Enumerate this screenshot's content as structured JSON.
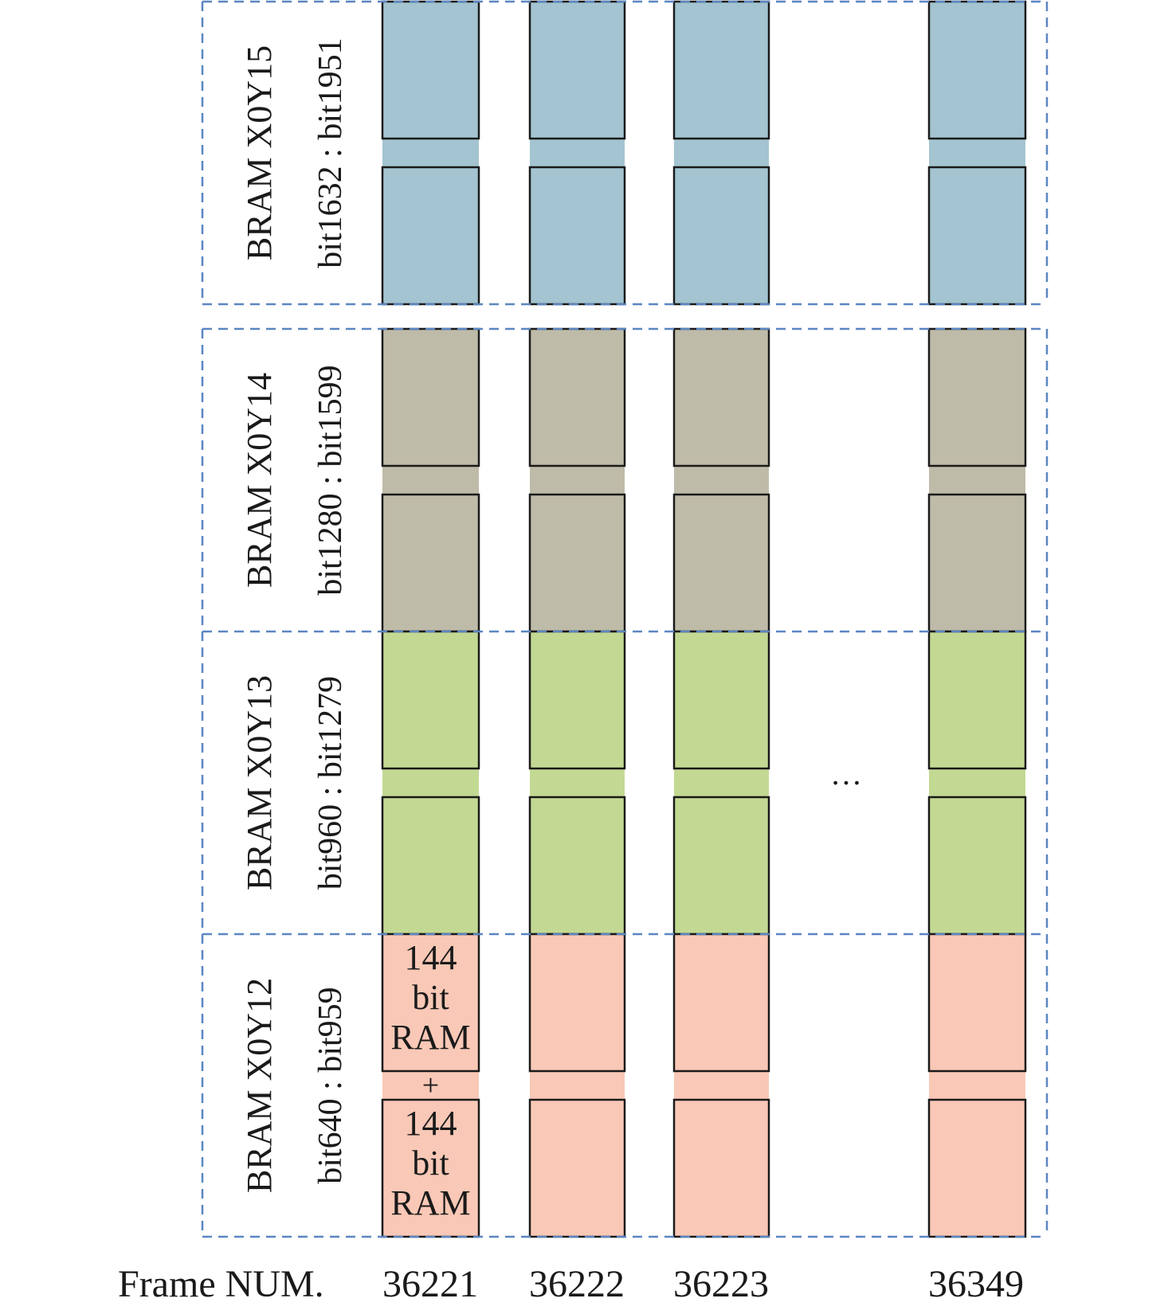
{
  "groups": [
    {
      "name": "BRAM X0Y15",
      "bits": "bit1632 : bit1951",
      "color": "#a3c4d0"
    },
    {
      "name": "BRAM X0Y14",
      "bits": "bit1280 : bit1599",
      "color": "#bfbba9"
    },
    {
      "name": "BRAM X0Y13",
      "bits": "bit960 : bit1279",
      "color": "#c3d993"
    },
    {
      "name": "BRAM X0Y12",
      "bits": "bit640 : bit959",
      "color": "#f9c8b6"
    }
  ],
  "block_label_top": [
    "144",
    "bit",
    "RAM"
  ],
  "plus_label": "+",
  "block_label_bottom": [
    "144",
    "bit",
    "RAM"
  ],
  "ellipsis": "…",
  "frame_label": "Frame NUM.",
  "frames": [
    "36221",
    "36222",
    "36223",
    "36349"
  ],
  "colors": {
    "border": "#5b86c2",
    "block_stroke": "#1a1a1a"
  }
}
